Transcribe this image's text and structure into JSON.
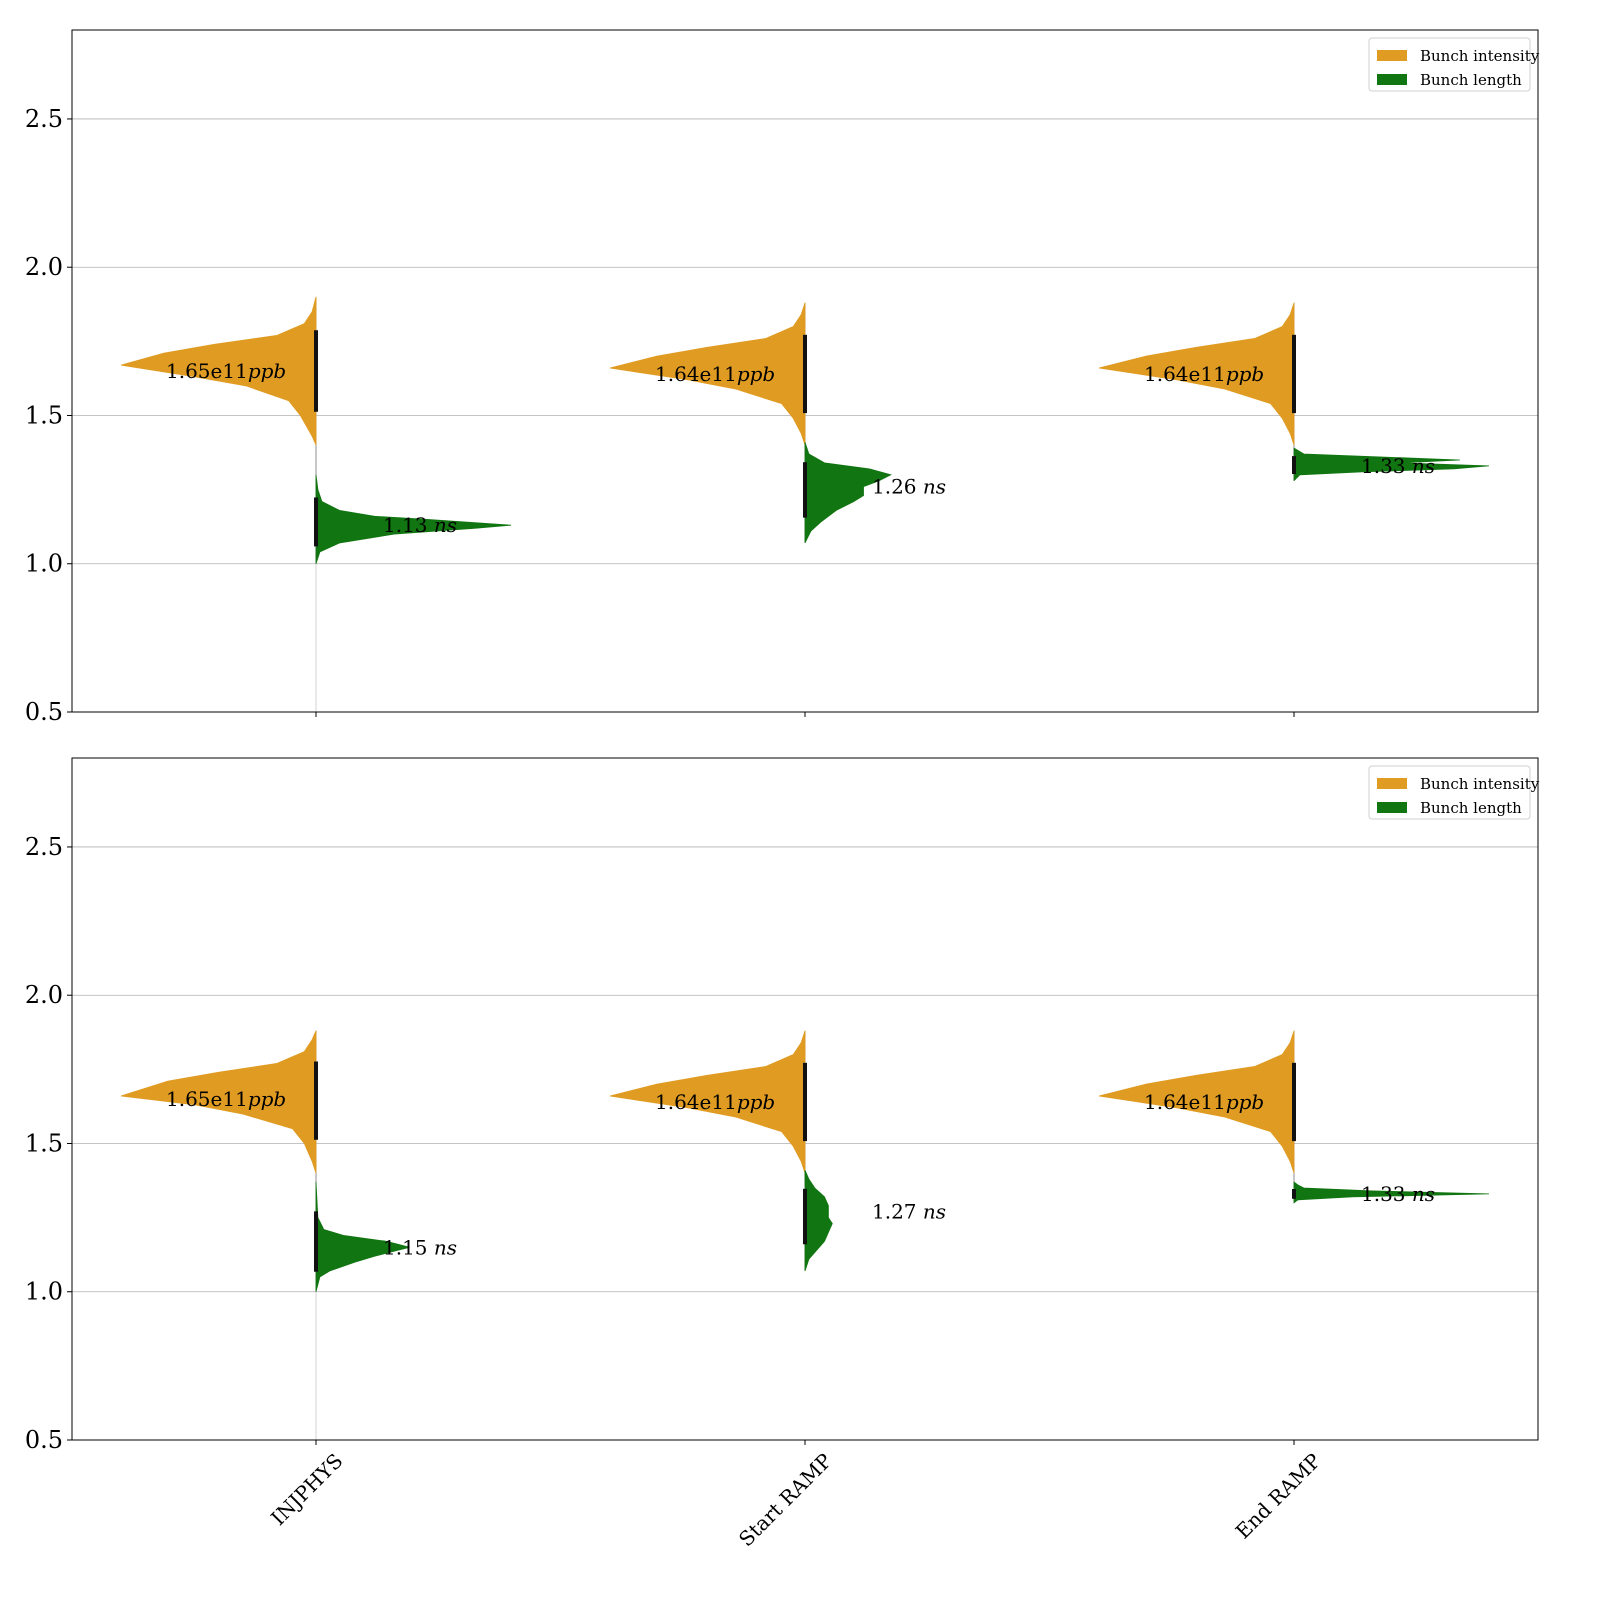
{
  "chart_data": [
    {
      "type": "violin",
      "panel": "top",
      "categories": [
        "INJPHYS",
        "Start RAMP",
        "End RAMP"
      ],
      "ylim": [
        0.5,
        2.8
      ],
      "yticks": [
        "0.5",
        "1.0",
        "1.5",
        "2.0",
        "2.5"
      ],
      "ytick_values": [
        0.5,
        1.0,
        1.5,
        2.0,
        2.5
      ],
      "grid": "horizontal",
      "legend_position": "top-right",
      "series": [
        {
          "name": "Bunch intensity",
          "color": "#e09b22",
          "side": "left",
          "median": [
            1.65,
            1.64,
            1.64
          ],
          "range": [
            [
              1.4,
              1.9
            ],
            [
              1.4,
              1.88
            ],
            [
              1.4,
              1.88
            ]
          ],
          "annotations": [
            {
              "number": "1.65e11",
              "unit": "ppb"
            },
            {
              "number": "1.64e11",
              "unit": "ppb"
            },
            {
              "number": "1.64e11",
              "unit": "ppb"
            }
          ]
        },
        {
          "name": "Bunch length",
          "color": "#117511",
          "side": "right",
          "median": [
            1.13,
            1.26,
            1.33
          ],
          "range": [
            [
              1.0,
              1.3
            ],
            [
              1.07,
              1.41
            ],
            [
              1.28,
              1.39
            ]
          ],
          "annotations": [
            {
              "number": "1.13",
              "unit": "ns"
            },
            {
              "number": "1.26",
              "unit": "ns"
            },
            {
              "number": "1.33",
              "unit": "ns"
            }
          ]
        }
      ]
    },
    {
      "type": "violin",
      "panel": "bottom",
      "categories": [
        "INJPHYS",
        "Start RAMP",
        "End RAMP"
      ],
      "ylim": [
        0.5,
        2.8
      ],
      "yticks": [
        "0.5",
        "1.0",
        "1.5",
        "2.0",
        "2.5"
      ],
      "ytick_values": [
        0.5,
        1.0,
        1.5,
        2.0,
        2.5
      ],
      "grid": "horizontal",
      "legend_position": "top-right",
      "series": [
        {
          "name": "Bunch intensity",
          "color": "#e09b22",
          "side": "left",
          "median": [
            1.65,
            1.64,
            1.64
          ],
          "range": [
            [
              1.4,
              1.88
            ],
            [
              1.4,
              1.88
            ],
            [
              1.4,
              1.88
            ]
          ],
          "annotations": [
            {
              "number": "1.65e11",
              "unit": "ppb"
            },
            {
              "number": "1.64e11",
              "unit": "ppb"
            },
            {
              "number": "1.64e11",
              "unit": "ppb"
            }
          ]
        },
        {
          "name": "Bunch length",
          "color": "#117511",
          "side": "right",
          "median": [
            1.15,
            1.27,
            1.33
          ],
          "range": [
            [
              1.0,
              1.37
            ],
            [
              1.07,
              1.41
            ],
            [
              1.3,
              1.36
            ]
          ],
          "annotations": [
            {
              "number": "1.15",
              "unit": "ns"
            },
            {
              "number": "1.27",
              "unit": "ns"
            },
            {
              "number": "1.33",
              "unit": "ns"
            }
          ]
        }
      ]
    }
  ]
}
